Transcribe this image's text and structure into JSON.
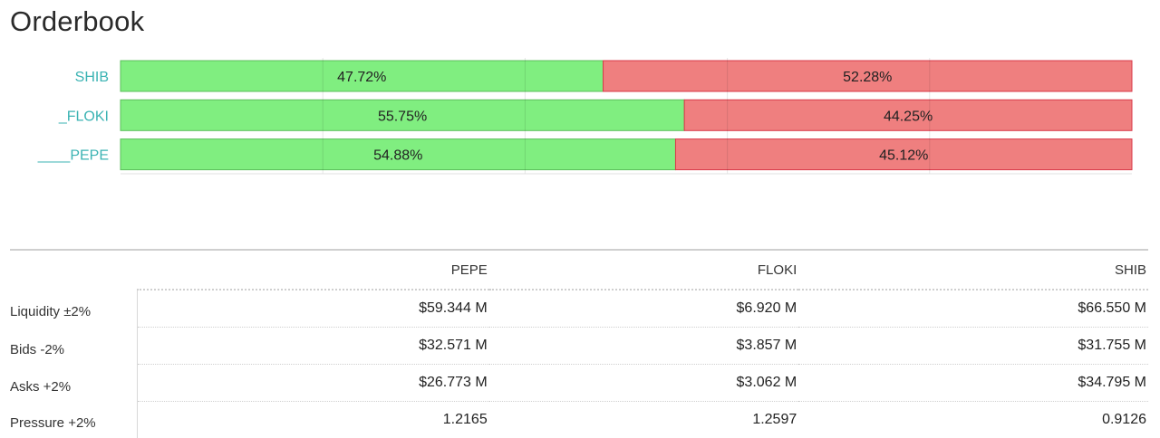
{
  "title": "Orderbook",
  "colors": {
    "bids": "#80ee80",
    "bids_border": "#5cbf5c",
    "asks": "#ef7f7f",
    "asks_border": "#d9394a",
    "label": "#3bb3b3"
  },
  "chart_data": {
    "type": "bar",
    "orientation": "horizontal",
    "stacked": true,
    "categories": [
      "SHIB",
      "_FLOKI",
      "____PEPE"
    ],
    "series": [
      {
        "values": [
          47.72,
          55.75,
          54.88
        ]
      },
      {
        "values": [
          52.28,
          44.25,
          45.12
        ]
      }
    ],
    "value_labels": [
      [
        "47.72%",
        "55.75%",
        "54.88%"
      ],
      [
        "52.28%",
        "44.25%",
        "45.12%"
      ]
    ],
    "xlim": [
      0,
      100
    ],
    "grid": true
  },
  "table": {
    "columns": [
      "PEPE",
      "FLOKI",
      "SHIB"
    ],
    "rows": [
      {
        "label": "Liquidity ±2%",
        "values": [
          "$59.344 M",
          "$6.920 M",
          "$66.550 M"
        ]
      },
      {
        "label": "Bids -2%",
        "values": [
          "$32.571 M",
          "$3.857 M",
          "$31.755 M"
        ]
      },
      {
        "label": "Asks +2%",
        "values": [
          "$26.773 M",
          "$3.062 M",
          "$34.795 M"
        ]
      },
      {
        "label": "Pressure +2%",
        "values": [
          "1.2165",
          "1.2597",
          "0.9126"
        ]
      }
    ]
  }
}
